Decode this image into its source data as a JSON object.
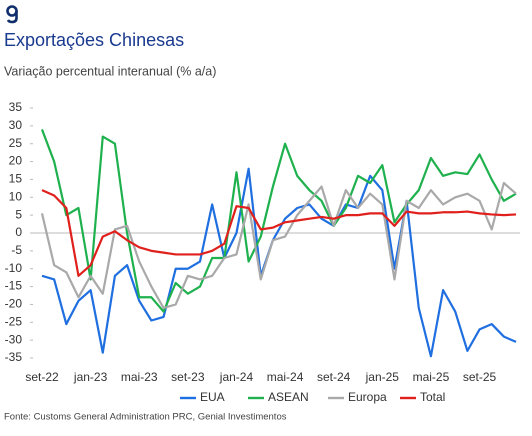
{
  "chart_data": {
    "type": "line",
    "title": "Exportações Chinesas",
    "subtitle": "Variação percentual interanual (% a/a)",
    "source": "Fonte: Customs General Administration PRC, Genial Investimentos",
    "categories": [
      "set-22",
      null,
      null,
      null,
      "jan-23",
      null,
      null,
      null,
      "mai-23",
      null,
      null,
      null,
      "set-23",
      null,
      null,
      null,
      "jan-24",
      null,
      null,
      null,
      "mai-24",
      null,
      null,
      null,
      "set-24",
      null,
      null,
      null,
      "jan-25",
      null,
      null,
      null,
      "mai-25",
      null,
      null,
      null,
      "set-25",
      null,
      null,
      null
    ],
    "series": [
      {
        "name": "EUA",
        "color": "#1f6fe0",
        "values": [
          -12,
          -13,
          -25.5,
          -19,
          -16,
          -33.5,
          -12,
          -9,
          -19,
          -24.5,
          -23.5,
          -10,
          -10,
          -8,
          8,
          -7,
          0,
          18,
          -12,
          -2,
          4,
          7,
          8,
          4,
          2,
          8,
          7,
          16,
          12,
          -10,
          9,
          -21,
          -34.5,
          -16,
          -22,
          -33,
          -27,
          -25.5,
          -29,
          -30.5
        ]
      },
      {
        "name": "ASEAN",
        "color": "#1fb14e",
        "values": [
          29,
          20,
          5,
          7,
          -13,
          27,
          25,
          0,
          -18,
          -18,
          -22,
          -14,
          -17,
          -15,
          -7,
          -7,
          17,
          -8,
          -1,
          13,
          25,
          16,
          12,
          9,
          2,
          7,
          16,
          14,
          19,
          3,
          8,
          12,
          21,
          16,
          17,
          16.5,
          22,
          15,
          9,
          11
        ]
      },
      {
        "name": "Europa",
        "color": "#a9a9a9",
        "values": [
          5.5,
          -9,
          -11,
          -18,
          -12,
          -17,
          1,
          2,
          -8,
          -15,
          -21,
          -20,
          -12,
          -13,
          -12,
          -7,
          -6,
          8,
          -13,
          -2,
          -1,
          5,
          9,
          13,
          2,
          12,
          7,
          11,
          8,
          -13,
          9,
          7,
          12,
          8,
          10,
          11,
          9,
          1,
          14,
          11
        ]
      },
      {
        "name": "Total",
        "color": "#e0201c",
        "values": [
          12,
          10.5,
          7,
          -12,
          -9,
          -1,
          0.5,
          -2,
          -4,
          -5,
          -5.5,
          -6,
          -6,
          -6,
          -5,
          -3,
          7.5,
          7,
          1,
          1.5,
          3,
          3.5,
          4,
          4.5,
          4,
          5,
          5,
          5.5,
          5.5,
          2,
          6,
          5.5,
          5.5,
          5.8,
          5.8,
          6,
          5.5,
          5.2,
          5,
          5.2
        ]
      }
    ],
    "ylim": [
      -35,
      35
    ],
    "yticks": [
      -35,
      -30,
      -25,
      -20,
      -15,
      -10,
      -5,
      0,
      5,
      10,
      15,
      20,
      25,
      30,
      35
    ],
    "legend": "bottom"
  }
}
